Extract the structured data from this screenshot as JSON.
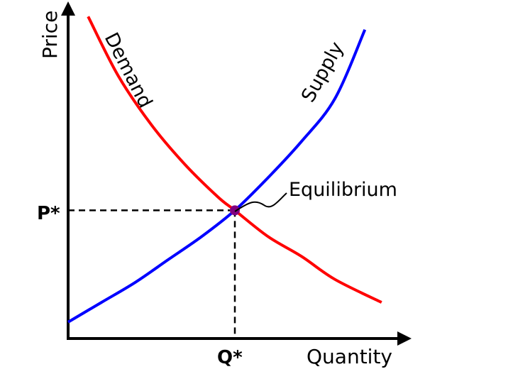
{
  "chart_data": {
    "type": "line",
    "xlabel": "Quantity",
    "ylabel": "Price",
    "xlim": [
      0,
      10
    ],
    "ylim": [
      0,
      10
    ],
    "series": [
      {
        "name": "Demand",
        "color": "#ff0000",
        "points": [
          [
            0.6,
            9.8
          ],
          [
            1.5,
            8.0
          ],
          [
            2.5,
            6.5
          ],
          [
            3.5,
            5.3
          ],
          [
            4.5,
            4.3
          ],
          [
            5.0,
            3.9
          ],
          [
            6.0,
            3.1
          ],
          [
            7.0,
            2.5
          ],
          [
            8.0,
            1.8
          ],
          [
            9.4,
            1.1
          ]
        ]
      },
      {
        "name": "Supply",
        "color": "#0000ff",
        "points": [
          [
            0.0,
            0.5
          ],
          [
            1.0,
            1.1
          ],
          [
            2.0,
            1.7
          ],
          [
            3.0,
            2.4
          ],
          [
            4.0,
            3.1
          ],
          [
            5.0,
            3.9
          ],
          [
            6.0,
            4.9
          ],
          [
            7.0,
            6.0
          ],
          [
            8.0,
            7.3
          ],
          [
            8.9,
            9.4
          ]
        ]
      }
    ],
    "equilibrium": {
      "x": 5.0,
      "y": 3.9,
      "label": "Equilibrium",
      "color": "#800080"
    },
    "tick_labels": {
      "x": "Q*",
      "y": "P*"
    },
    "grid": false,
    "legend": "none"
  }
}
